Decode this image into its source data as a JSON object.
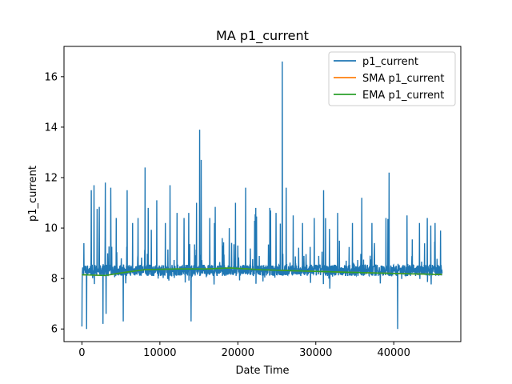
{
  "chart_data": {
    "type": "line",
    "title": "MA p1_current",
    "xlabel": "Date Time",
    "ylabel": "p1_current",
    "xlim": [
      -2300,
      48600
    ],
    "ylim": [
      5.5,
      17.2
    ],
    "xticks": [
      0,
      10000,
      20000,
      30000,
      40000
    ],
    "yticks": [
      6,
      8,
      10,
      12,
      14,
      16
    ],
    "xtick_labels": [
      "0",
      "10000",
      "20000",
      "30000",
      "40000"
    ],
    "ytick_labels": [
      "6",
      "8",
      "10",
      "12",
      "14",
      "16"
    ],
    "grid": false,
    "legend_position": "top-right",
    "series": [
      {
        "name": "p1_current",
        "color": "#1f77b4",
        "x_range": [
          0,
          46200
        ],
        "baseline": 8.25,
        "spikes": [
          {
            "x": 0,
            "y": 6.1
          },
          {
            "x": 250,
            "y": 9.4
          },
          {
            "x": 600,
            "y": 6.0
          },
          {
            "x": 1200,
            "y": 11.5
          },
          {
            "x": 1550,
            "y": 11.7
          },
          {
            "x": 2200,
            "y": 9.6
          },
          {
            "x": 2700,
            "y": 6.2
          },
          {
            "x": 3000,
            "y": 11.8
          },
          {
            "x": 3100,
            "y": 6.6
          },
          {
            "x": 3700,
            "y": 11.6
          },
          {
            "x": 4400,
            "y": 10.4
          },
          {
            "x": 5300,
            "y": 6.3
          },
          {
            "x": 5800,
            "y": 11.5
          },
          {
            "x": 6500,
            "y": 10.2
          },
          {
            "x": 7200,
            "y": 10.4
          },
          {
            "x": 8100,
            "y": 12.4
          },
          {
            "x": 8500,
            "y": 10.8
          },
          {
            "x": 9600,
            "y": 11.1
          },
          {
            "x": 10700,
            "y": 10.2
          },
          {
            "x": 11300,
            "y": 11.7
          },
          {
            "x": 12200,
            "y": 10.6
          },
          {
            "x": 13100,
            "y": 10.4
          },
          {
            "x": 13700,
            "y": 10.6
          },
          {
            "x": 14000,
            "y": 6.3
          },
          {
            "x": 14700,
            "y": 11.0
          },
          {
            "x": 15100,
            "y": 13.9
          },
          {
            "x": 15300,
            "y": 12.7
          },
          {
            "x": 16400,
            "y": 10.4
          },
          {
            "x": 17000,
            "y": 10.2
          },
          {
            "x": 18000,
            "y": 9.6
          },
          {
            "x": 18900,
            "y": 10.0
          },
          {
            "x": 19700,
            "y": 11.0
          },
          {
            "x": 21000,
            "y": 11.6
          },
          {
            "x": 22300,
            "y": 10.8
          },
          {
            "x": 24100,
            "y": 10.8
          },
          {
            "x": 24900,
            "y": 10.6
          },
          {
            "x": 25700,
            "y": 16.6
          },
          {
            "x": 26200,
            "y": 11.6
          },
          {
            "x": 27100,
            "y": 10.5
          },
          {
            "x": 28300,
            "y": 10.2
          },
          {
            "x": 29800,
            "y": 10.4
          },
          {
            "x": 31000,
            "y": 11.5
          },
          {
            "x": 31800,
            "y": 7.6
          },
          {
            "x": 32800,
            "y": 10.6
          },
          {
            "x": 34700,
            "y": 10.2
          },
          {
            "x": 35900,
            "y": 11.2
          },
          {
            "x": 37200,
            "y": 10.2
          },
          {
            "x": 39000,
            "y": 10.4
          },
          {
            "x": 39400,
            "y": 12.2
          },
          {
            "x": 40500,
            "y": 6.0
          },
          {
            "x": 41700,
            "y": 10.5
          },
          {
            "x": 43300,
            "y": 10.2
          },
          {
            "x": 44300,
            "y": 10.4
          },
          {
            "x": 45300,
            "y": 10.2
          },
          {
            "x": 46000,
            "y": 9.9
          }
        ]
      },
      {
        "name": "SMA p1_current",
        "color": "#ff7f0e",
        "points": [
          [
            0,
            8.15
          ],
          [
            3000,
            8.12
          ],
          [
            5000,
            8.22
          ],
          [
            8000,
            8.35
          ],
          [
            12000,
            8.38
          ],
          [
            16000,
            8.38
          ],
          [
            19000,
            8.42
          ],
          [
            23000,
            8.35
          ],
          [
            28000,
            8.3
          ],
          [
            34000,
            8.25
          ],
          [
            40000,
            8.2
          ],
          [
            46200,
            8.16
          ]
        ]
      },
      {
        "name": "EMA p1_current",
        "color": "#2ca02c",
        "points": [
          [
            0,
            8.15
          ],
          [
            3000,
            8.12
          ],
          [
            5000,
            8.22
          ],
          [
            8000,
            8.35
          ],
          [
            12000,
            8.38
          ],
          [
            16000,
            8.38
          ],
          [
            19000,
            8.42
          ],
          [
            23000,
            8.35
          ],
          [
            28000,
            8.3
          ],
          [
            34000,
            8.25
          ],
          [
            40000,
            8.2
          ],
          [
            46200,
            8.16
          ]
        ]
      }
    ]
  }
}
